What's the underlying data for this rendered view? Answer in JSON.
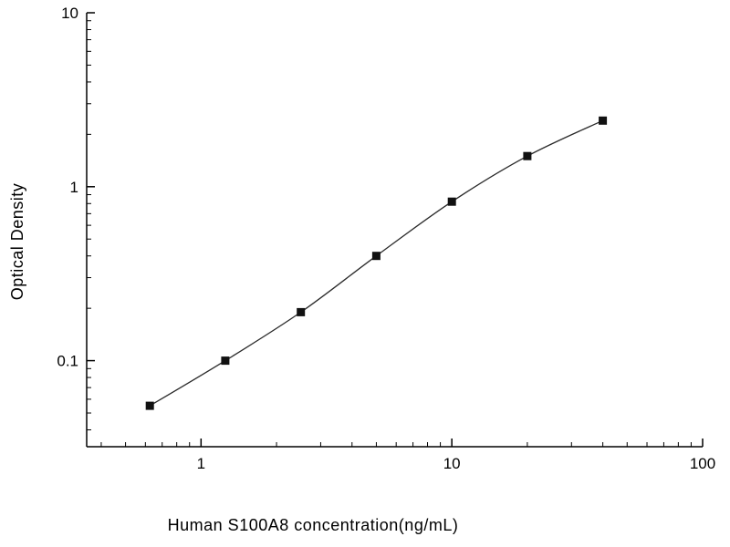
{
  "chart_data": {
    "type": "scatter",
    "title": "",
    "xlabel": "Human S100A8 concentration(ng/mL)",
    "ylabel": "Optical Density",
    "xscale": "log",
    "yscale": "log",
    "xlim": [
      0.35,
      100
    ],
    "ylim": [
      0.032,
      10
    ],
    "x": [
      0.625,
      1.25,
      2.5,
      5,
      10,
      20,
      40
    ],
    "y": [
      0.055,
      0.1,
      0.19,
      0.4,
      0.82,
      1.5,
      2.4
    ],
    "x_major_ticks": [
      1,
      10,
      100
    ],
    "x_tick_labels": [
      "1",
      "10",
      "100"
    ],
    "y_major_ticks": [
      0.1,
      1,
      10
    ],
    "y_tick_labels": [
      "0.1",
      "1",
      "10"
    ],
    "grid": false,
    "legend": "none",
    "marker": "square",
    "line": true,
    "colors": {
      "background": "#ffffff",
      "axis": "#000000",
      "line": "#2a2a2a",
      "marker": "#111111",
      "text": "#000000"
    }
  }
}
